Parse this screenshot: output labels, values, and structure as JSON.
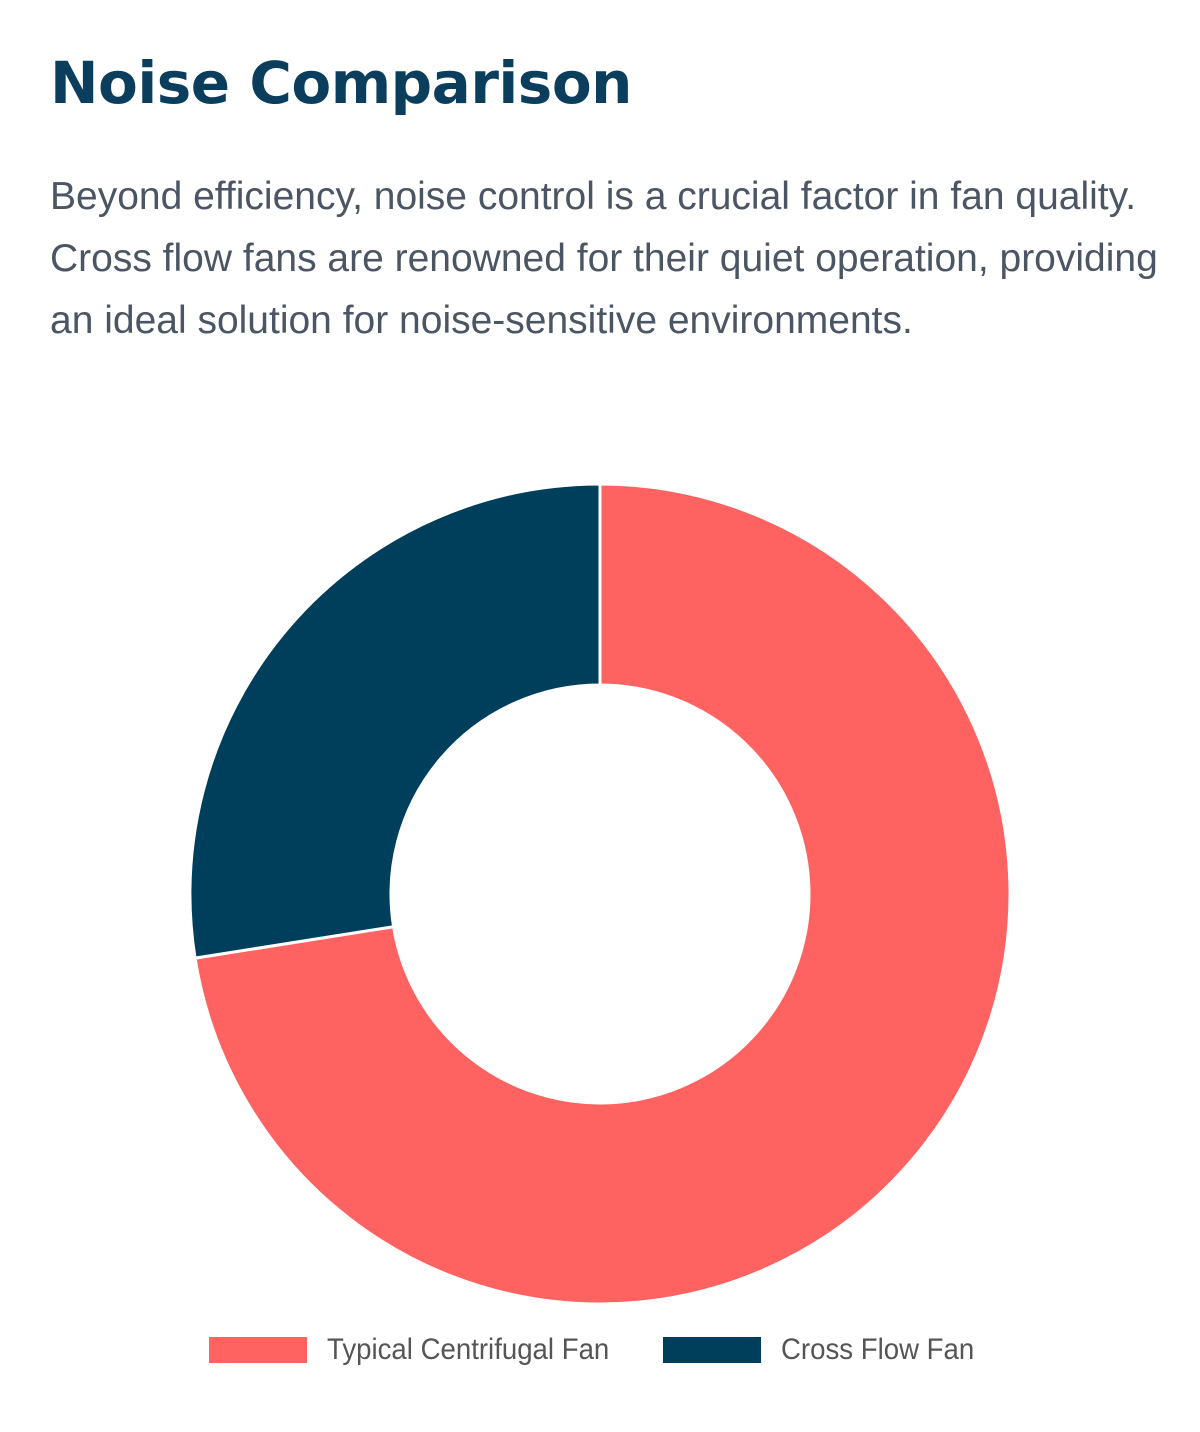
{
  "page": {
    "title": "Noise Comparison",
    "description": "Beyond efficiency, noise control is a crucial factor in fan quality. Cross flow fans are renowned for their quiet operation, providing an ideal solution for noise-sensitive environments."
  },
  "chart_data": {
    "type": "pie",
    "variant": "doughnut",
    "title": "",
    "categories": [
      "Typical Centrifugal Fan",
      "Cross Flow Fan"
    ],
    "values": [
      72.5,
      27.5
    ],
    "colors": [
      "#ff6361",
      "#003f5c"
    ],
    "legend": "bottom"
  }
}
